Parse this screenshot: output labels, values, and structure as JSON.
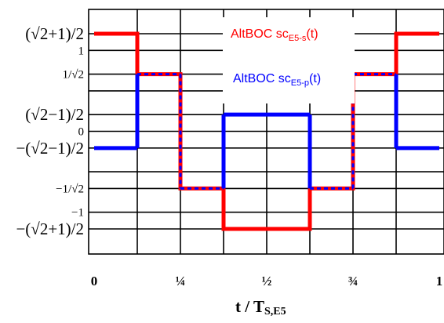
{
  "chart_data": {
    "type": "line",
    "xlabel": "t / T",
    "xlabel_subscript": "S,E5",
    "xlim": [
      0,
      1
    ],
    "ylim": [
      -1.5,
      1.5
    ],
    "x_ticks": [
      {
        "value": 0,
        "label": "0"
      },
      {
        "value": 0.25,
        "label": "¼"
      },
      {
        "value": 0.5,
        "label": "½"
      },
      {
        "value": 0.75,
        "label": "¾"
      },
      {
        "value": 1,
        "label": "1"
      }
    ],
    "y_ticks": [
      {
        "value": 1.2071,
        "label": "(√2+1)/2",
        "style": "big"
      },
      {
        "value": 1,
        "label": "1",
        "style": "small"
      },
      {
        "value": 0.7071,
        "label": "1/√2",
        "style": "small"
      },
      {
        "value": 0.5,
        "label": "",
        "style": "none"
      },
      {
        "value": 0.2071,
        "label": "(√2−1)/2",
        "style": "big"
      },
      {
        "value": 0,
        "label": "0",
        "style": "small"
      },
      {
        "value": -0.2071,
        "label": "−(√2−1)/2",
        "style": "big"
      },
      {
        "value": -0.5,
        "label": "",
        "style": "none"
      },
      {
        "value": -0.7071,
        "label": "−1/√2",
        "style": "small"
      },
      {
        "value": -1,
        "label": "−1",
        "style": "small"
      },
      {
        "value": -1.2071,
        "label": "−(√2+1)/2",
        "style": "big"
      }
    ],
    "series": [
      {
        "name": "AltBOC sc",
        "name_subscript": "E5-s",
        "name_suffix": "(t)",
        "color": "#ff0000",
        "step_x": [
          0,
          0.125,
          0.25,
          0.375,
          0.625,
          0.75,
          0.875,
          1
        ],
        "values": [
          1.2071,
          0.7071,
          -0.7071,
          -1.2071,
          -0.7071,
          0.7071,
          1.2071
        ]
      },
      {
        "name": "AltBOC sc",
        "name_subscript": "E5-p",
        "name_suffix": "(t)",
        "color": "#0000ff",
        "step_x": [
          0,
          0.125,
          0.25,
          0.375,
          0.625,
          0.75,
          0.875,
          1
        ],
        "values": [
          -0.2071,
          0.7071,
          -0.7071,
          0.2071,
          -0.7071,
          0.7071,
          -0.2071
        ]
      }
    ],
    "grid": true,
    "legend_position": "top-right"
  }
}
